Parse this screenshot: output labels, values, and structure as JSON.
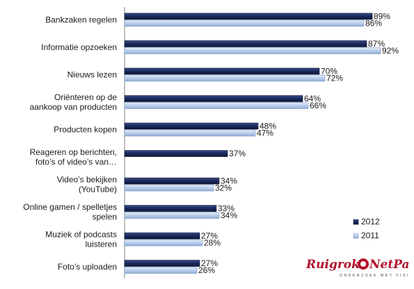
{
  "chart_data": {
    "type": "bar",
    "orientation": "horizontal",
    "categories": [
      [
        "Bankzaken regelen"
      ],
      [
        "Informatie opzoeken"
      ],
      [
        "Nieuws lezen"
      ],
      [
        "Oriënteren op de",
        "aankoop van producten"
      ],
      [
        "Producten kopen"
      ],
      [
        "Reageren op berichten,",
        "foto’s of video’s van…"
      ],
      [
        "Video’s bekijken",
        "(YouTube)"
      ],
      [
        "Online gamen / spelletjes",
        "spelen"
      ],
      [
        "Muziek of podcasts",
        "luisteren"
      ],
      [
        "Foto’s uploaden"
      ]
    ],
    "series": [
      {
        "name": "2012",
        "color": "#1b2a5e",
        "values": [
          89,
          87,
          70,
          64,
          48,
          37,
          34,
          33,
          27,
          27
        ]
      },
      {
        "name": "2011",
        "color": "#b9cdea",
        "values": [
          86,
          92,
          72,
          66,
          47,
          null,
          32,
          34,
          28,
          26
        ]
      }
    ],
    "value_suffix": "%",
    "xlim": [
      0,
      100
    ],
    "grid": false,
    "legend_position": "bottom-right"
  },
  "logo": {
    "name": "Ruigrok NetPanel",
    "tagline": "ONDERZOEK MET VISIE"
  }
}
